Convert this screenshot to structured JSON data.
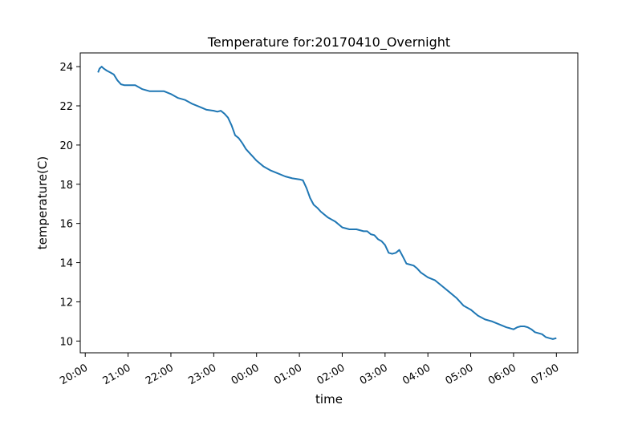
{
  "chart_data": {
    "type": "line",
    "title": "Temperature for:20170410_Overnight",
    "xlabel": "time",
    "ylabel": "temperature(C)",
    "x_ticks": [
      "20:00",
      "21:00",
      "22:00",
      "23:00",
      "00:00",
      "01:00",
      "02:00",
      "03:00",
      "04:00",
      "05:00",
      "06:00",
      "07:00"
    ],
    "y_ticks": [
      10,
      12,
      14,
      16,
      18,
      20,
      22,
      24
    ],
    "xlim": [
      "2017-04-10 19:53",
      "2017-04-11 07:30"
    ],
    "ylim": [
      9.4,
      24.7
    ],
    "grid": false,
    "series": [
      {
        "color": "#1f77b4",
        "x": [
          "2017-04-10 20:18",
          "2017-04-10 20:20",
          "2017-04-10 20:23",
          "2017-04-10 20:26",
          "2017-04-10 20:30",
          "2017-04-10 20:35",
          "2017-04-10 20:40",
          "2017-04-10 20:45",
          "2017-04-10 20:50",
          "2017-04-10 20:55",
          "2017-04-10 21:00",
          "2017-04-10 21:10",
          "2017-04-10 21:20",
          "2017-04-10 21:30",
          "2017-04-10 21:40",
          "2017-04-10 21:50",
          "2017-04-10 22:00",
          "2017-04-10 22:10",
          "2017-04-10 22:20",
          "2017-04-10 22:30",
          "2017-04-10 22:40",
          "2017-04-10 22:50",
          "2017-04-10 23:00",
          "2017-04-10 23:05",
          "2017-04-10 23:10",
          "2017-04-10 23:15",
          "2017-04-10 23:20",
          "2017-04-10 23:25",
          "2017-04-10 23:30",
          "2017-04-10 23:35",
          "2017-04-10 23:40",
          "2017-04-10 23:45",
          "2017-04-10 23:50",
          "2017-04-10 23:55",
          "2017-04-11 00:00",
          "2017-04-11 00:10",
          "2017-04-11 00:20",
          "2017-04-11 00:30",
          "2017-04-11 00:40",
          "2017-04-11 00:50",
          "2017-04-11 01:00",
          "2017-04-11 01:05",
          "2017-04-11 01:10",
          "2017-04-11 01:15",
          "2017-04-11 01:20",
          "2017-04-11 01:25",
          "2017-04-11 01:30",
          "2017-04-11 01:40",
          "2017-04-11 01:50",
          "2017-04-11 02:00",
          "2017-04-11 02:10",
          "2017-04-11 02:20",
          "2017-04-11 02:30",
          "2017-04-11 02:35",
          "2017-04-11 02:40",
          "2017-04-11 02:45",
          "2017-04-11 02:50",
          "2017-04-11 02:55",
          "2017-04-11 03:00",
          "2017-04-11 03:05",
          "2017-04-11 03:10",
          "2017-04-11 03:15",
          "2017-04-11 03:20",
          "2017-04-11 03:25",
          "2017-04-11 03:30",
          "2017-04-11 03:35",
          "2017-04-11 03:40",
          "2017-04-11 03:45",
          "2017-04-11 03:50",
          "2017-04-11 04:00",
          "2017-04-11 04:10",
          "2017-04-11 04:20",
          "2017-04-11 04:30",
          "2017-04-11 04:40",
          "2017-04-11 04:50",
          "2017-04-11 05:00",
          "2017-04-11 05:10",
          "2017-04-11 05:20",
          "2017-04-11 05:30",
          "2017-04-11 05:40",
          "2017-04-11 05:50",
          "2017-04-11 05:55",
          "2017-04-11 06:00",
          "2017-04-11 06:05",
          "2017-04-11 06:10",
          "2017-04-11 06:15",
          "2017-04-11 06:20",
          "2017-04-11 06:25",
          "2017-04-11 06:30",
          "2017-04-11 06:35",
          "2017-04-11 06:40",
          "2017-04-11 06:45",
          "2017-04-11 06:50",
          "2017-04-11 06:55",
          "2017-04-11 07:00"
        ],
        "y": [
          23.7,
          23.9,
          24.0,
          23.9,
          23.8,
          23.7,
          23.6,
          23.3,
          23.1,
          23.05,
          23.05,
          23.05,
          22.85,
          22.75,
          22.75,
          22.75,
          22.6,
          22.4,
          22.3,
          22.1,
          21.95,
          21.8,
          21.75,
          21.7,
          21.75,
          21.6,
          21.4,
          21.0,
          20.5,
          20.35,
          20.1,
          19.8,
          19.6,
          19.4,
          19.2,
          18.9,
          18.7,
          18.55,
          18.4,
          18.3,
          18.25,
          18.2,
          17.8,
          17.3,
          16.95,
          16.8,
          16.6,
          16.3,
          16.1,
          15.8,
          15.7,
          15.7,
          15.6,
          15.6,
          15.45,
          15.4,
          15.2,
          15.1,
          14.9,
          14.5,
          14.45,
          14.5,
          14.65,
          14.3,
          13.95,
          13.9,
          13.85,
          13.7,
          13.5,
          13.25,
          13.1,
          12.8,
          12.5,
          12.2,
          11.8,
          11.6,
          11.3,
          11.1,
          11.0,
          10.85,
          10.7,
          10.65,
          10.6,
          10.7,
          10.75,
          10.75,
          10.7,
          10.6,
          10.45,
          10.4,
          10.35,
          10.2,
          10.15,
          10.1,
          10.15
        ]
      }
    ]
  }
}
